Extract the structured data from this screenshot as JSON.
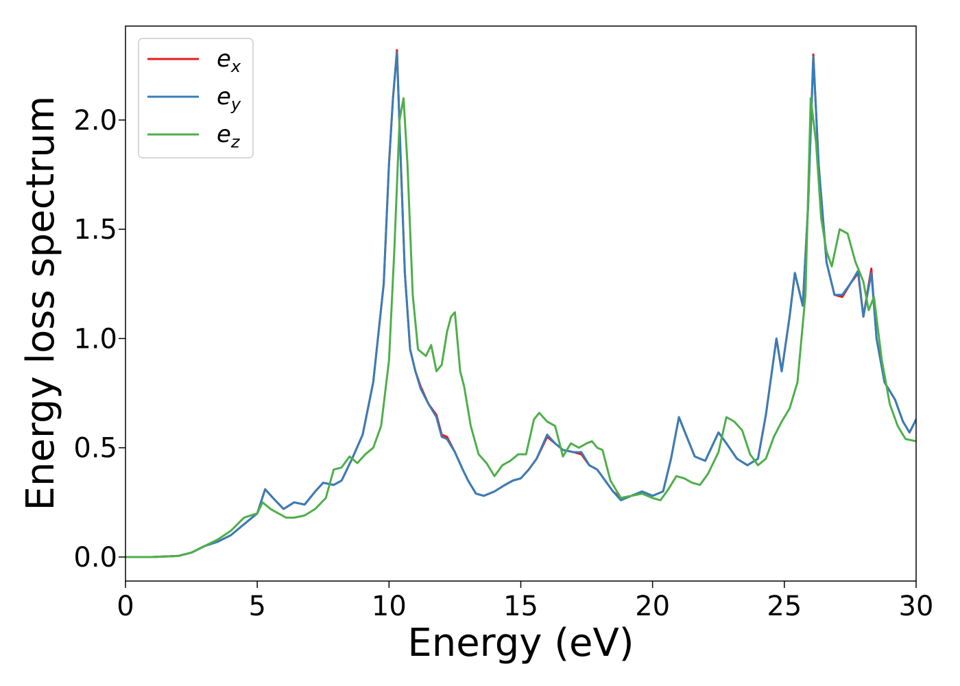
{
  "chart_data": {
    "type": "line",
    "title": "",
    "xlabel": "Energy (eV)",
    "ylabel": "Energy loss spectrum",
    "xlim": [
      0,
      30
    ],
    "ylim": [
      -0.11,
      2.43
    ],
    "xticks": [
      0,
      5,
      10,
      15,
      20,
      25,
      30
    ],
    "xtick_labels": [
      "0",
      "5",
      "10",
      "15",
      "20",
      "25",
      "30"
    ],
    "yticks": [
      0.0,
      0.5,
      1.0,
      1.5,
      2.0
    ],
    "ytick_labels": [
      "0.0",
      "0.5",
      "1.0",
      "1.5",
      "2.0"
    ],
    "grid": false,
    "legend_position": "top-left",
    "series": [
      {
        "name": "e_x",
        "legend_main": "e",
        "legend_sub": "x",
        "color": "#e41a1c",
        "x": [
          0,
          1,
          2,
          2.5,
          3,
          3.5,
          4,
          4.5,
          5,
          5.3,
          5.6,
          6,
          6.4,
          6.8,
          7.2,
          7.5,
          7.9,
          8.2,
          8.6,
          9,
          9.4,
          9.8,
          10,
          10.15,
          10.3,
          10.45,
          10.6,
          10.8,
          11,
          11.2,
          11.5,
          11.8,
          12,
          12.2,
          12.5,
          12.8,
          13,
          13.3,
          13.6,
          14,
          14.4,
          14.7,
          15,
          15.3,
          15.6,
          16,
          16.3,
          16.6,
          17,
          17.3,
          17.6,
          17.9,
          18.2,
          18.5,
          18.8,
          19.2,
          19.6,
          20,
          20.4,
          20.7,
          21,
          21.3,
          21.6,
          22,
          22.5,
          22.8,
          23.2,
          23.6,
          24,
          24.3,
          24.7,
          24.9,
          25.2,
          25.4,
          25.7,
          25.9,
          26.1,
          26.3,
          26.6,
          26.9,
          27.2,
          27.5,
          27.8,
          28,
          28.3,
          28.5,
          28.8,
          29.2,
          29.5,
          29.75,
          30
        ],
        "y": [
          0.0,
          0.0,
          0.005,
          0.02,
          0.05,
          0.07,
          0.1,
          0.15,
          0.2,
          0.31,
          0.27,
          0.22,
          0.25,
          0.24,
          0.3,
          0.34,
          0.33,
          0.35,
          0.45,
          0.56,
          0.8,
          1.25,
          1.8,
          2.1,
          2.32,
          1.8,
          1.3,
          0.95,
          0.85,
          0.78,
          0.7,
          0.65,
          0.56,
          0.55,
          0.48,
          0.4,
          0.35,
          0.29,
          0.28,
          0.3,
          0.33,
          0.35,
          0.36,
          0.4,
          0.45,
          0.55,
          0.52,
          0.49,
          0.48,
          0.47,
          0.42,
          0.4,
          0.35,
          0.3,
          0.27,
          0.28,
          0.3,
          0.28,
          0.3,
          0.45,
          0.64,
          0.55,
          0.46,
          0.44,
          0.57,
          0.52,
          0.45,
          0.42,
          0.45,
          0.65,
          1.0,
          0.85,
          1.1,
          1.3,
          1.15,
          1.6,
          2.3,
          1.8,
          1.35,
          1.2,
          1.19,
          1.25,
          1.3,
          1.1,
          1.32,
          1.0,
          0.8,
          0.72,
          0.62,
          0.57,
          0.63
        ]
      },
      {
        "name": "e_y",
        "legend_main": "e",
        "legend_sub": "y",
        "color": "#377eb8",
        "x": [
          0,
          1,
          2,
          2.5,
          3,
          3.5,
          4,
          4.5,
          5,
          5.3,
          5.6,
          6,
          6.4,
          6.8,
          7.2,
          7.5,
          7.9,
          8.2,
          8.6,
          9,
          9.4,
          9.8,
          10,
          10.15,
          10.3,
          10.45,
          10.6,
          10.8,
          11,
          11.2,
          11.5,
          11.8,
          12,
          12.2,
          12.5,
          12.8,
          13,
          13.3,
          13.6,
          14,
          14.4,
          14.7,
          15,
          15.3,
          15.6,
          16,
          16.3,
          16.6,
          17,
          17.3,
          17.6,
          17.9,
          18.2,
          18.5,
          18.8,
          19.2,
          19.6,
          20,
          20.4,
          20.7,
          21,
          21.3,
          21.6,
          22,
          22.5,
          22.8,
          23.2,
          23.6,
          24,
          24.3,
          24.7,
          24.9,
          25.2,
          25.4,
          25.7,
          25.9,
          26.1,
          26.3,
          26.6,
          26.9,
          27.2,
          27.5,
          27.8,
          28,
          28.3,
          28.5,
          28.8,
          29.2,
          29.5,
          29.75,
          30
        ],
        "y": [
          0.0,
          0.0,
          0.005,
          0.02,
          0.05,
          0.07,
          0.1,
          0.15,
          0.2,
          0.31,
          0.27,
          0.22,
          0.25,
          0.24,
          0.3,
          0.34,
          0.33,
          0.35,
          0.45,
          0.56,
          0.8,
          1.25,
          1.8,
          2.1,
          2.31,
          1.8,
          1.3,
          0.95,
          0.85,
          0.77,
          0.7,
          0.64,
          0.55,
          0.54,
          0.48,
          0.4,
          0.35,
          0.29,
          0.28,
          0.3,
          0.33,
          0.35,
          0.36,
          0.4,
          0.45,
          0.56,
          0.52,
          0.49,
          0.48,
          0.48,
          0.42,
          0.4,
          0.35,
          0.3,
          0.26,
          0.28,
          0.3,
          0.28,
          0.3,
          0.45,
          0.64,
          0.55,
          0.46,
          0.44,
          0.57,
          0.52,
          0.45,
          0.42,
          0.45,
          0.65,
          1.0,
          0.85,
          1.1,
          1.3,
          1.15,
          1.6,
          2.29,
          1.8,
          1.35,
          1.2,
          1.2,
          1.25,
          1.31,
          1.1,
          1.3,
          1.0,
          0.8,
          0.72,
          0.62,
          0.57,
          0.63
        ]
      },
      {
        "name": "e_z",
        "legend_main": "e",
        "legend_sub": "z",
        "color": "#4daf4a",
        "x": [
          0,
          1,
          2,
          2.5,
          3,
          3.5,
          4,
          4.5,
          5,
          5.2,
          5.5,
          5.8,
          6.1,
          6.4,
          6.8,
          7.2,
          7.6,
          7.9,
          8.2,
          8.5,
          8.8,
          9.1,
          9.4,
          9.7,
          10,
          10.2,
          10.4,
          10.55,
          10.7,
          10.9,
          11.1,
          11.4,
          11.6,
          11.8,
          12,
          12.2,
          12.35,
          12.5,
          12.7,
          12.85,
          13.1,
          13.4,
          13.7,
          14,
          14.3,
          14.6,
          14.9,
          15.2,
          15.5,
          15.7,
          16,
          16.3,
          16.6,
          16.9,
          17.2,
          17.5,
          17.7,
          17.9,
          18.1,
          18.4,
          18.8,
          19.2,
          19.6,
          20,
          20.3,
          20.6,
          20.9,
          21.2,
          21.5,
          21.8,
          22.1,
          22.5,
          22.8,
          23.1,
          23.4,
          23.7,
          24,
          24.3,
          24.6,
          24.9,
          25.2,
          25.5,
          25.8,
          26,
          26.2,
          26.4,
          26.6,
          26.8,
          27.1,
          27.4,
          27.7,
          28,
          28.2,
          28.4,
          28.7,
          29,
          29.3,
          29.6,
          30
        ],
        "y": [
          0.0,
          0.0,
          0.005,
          0.02,
          0.05,
          0.08,
          0.12,
          0.18,
          0.2,
          0.25,
          0.22,
          0.2,
          0.18,
          0.18,
          0.19,
          0.22,
          0.27,
          0.4,
          0.41,
          0.46,
          0.43,
          0.47,
          0.5,
          0.6,
          0.9,
          1.4,
          2.0,
          2.1,
          1.8,
          1.2,
          0.95,
          0.92,
          0.97,
          0.85,
          0.88,
          1.03,
          1.1,
          1.12,
          0.85,
          0.78,
          0.6,
          0.47,
          0.43,
          0.37,
          0.42,
          0.44,
          0.47,
          0.47,
          0.63,
          0.66,
          0.62,
          0.6,
          0.46,
          0.52,
          0.5,
          0.52,
          0.53,
          0.5,
          0.49,
          0.35,
          0.27,
          0.28,
          0.29,
          0.27,
          0.26,
          0.31,
          0.37,
          0.36,
          0.34,
          0.33,
          0.38,
          0.48,
          0.64,
          0.62,
          0.58,
          0.47,
          0.42,
          0.45,
          0.55,
          0.62,
          0.68,
          0.8,
          1.2,
          2.1,
          1.9,
          1.55,
          1.4,
          1.33,
          1.5,
          1.48,
          1.35,
          1.26,
          1.13,
          1.19,
          0.9,
          0.7,
          0.6,
          0.54,
          0.53
        ]
      }
    ]
  }
}
